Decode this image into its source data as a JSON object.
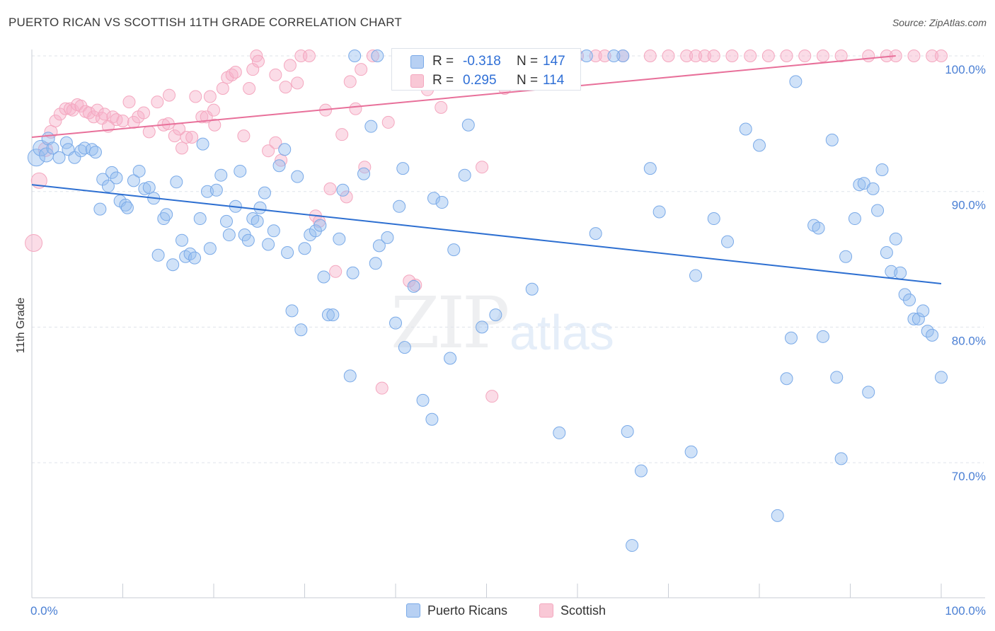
{
  "header": {
    "title": "PUERTO RICAN VS SCOTTISH 11TH GRADE CORRELATION CHART",
    "source": "Source: ZipAtlas.com"
  },
  "watermark": {
    "zip": "ZIP",
    "atlas": "atlas"
  },
  "stats_legend": {
    "rows": [
      {
        "r_label": "R =",
        "r_value": "-0.318",
        "n_label": "N =",
        "n_value": "147",
        "series": "Puerto Ricans"
      },
      {
        "r_label": "R =",
        "r_value": "0.295",
        "n_label": "N =",
        "n_value": "114",
        "series": "Scottish"
      }
    ]
  },
  "bottom_legend": {
    "items": [
      "Puerto Ricans",
      "Scottish"
    ]
  },
  "chart_data": {
    "type": "scatter",
    "title": "PUERTO RICAN VS SCOTTISH 11TH GRADE CORRELATION CHART",
    "xlabel": "",
    "ylabel": "11th Grade",
    "xlim": [
      0,
      100
    ],
    "ylim": [
      60,
      100
    ],
    "x_tick_labels": [
      "0.0%",
      "100.0%"
    ],
    "y_ticks": [
      {
        "value": 70,
        "label": "70.0%"
      },
      {
        "value": 80,
        "label": "80.0%"
      },
      {
        "value": 90,
        "label": "90.0%"
      },
      {
        "value": 100,
        "label": "100.0%"
      }
    ],
    "grid": true,
    "colors": {
      "Puerto Ricans": "#7aaae8",
      "Scottish": "#f4a7bf",
      "blue_line": "#2d6fd1",
      "pink_line": "#e8709a",
      "tick_label": "#4a7fd4"
    },
    "series": [
      {
        "name": "Puerto Ricans",
        "trend": [
          [
            0,
            90.5
          ],
          [
            100,
            83.2
          ]
        ],
        "points": [
          [
            0.5,
            92.5
          ],
          [
            1,
            93.2
          ],
          [
            1.6,
            92.7
          ],
          [
            1.8,
            93.9
          ],
          [
            2.3,
            93.2
          ],
          [
            3,
            92.5
          ],
          [
            3.8,
            93.6
          ],
          [
            4,
            93.1
          ],
          [
            4.7,
            92.5
          ],
          [
            5.4,
            93
          ],
          [
            5.8,
            93.2
          ],
          [
            6.6,
            93.1
          ],
          [
            7,
            92.9
          ],
          [
            7.5,
            88.7
          ],
          [
            7.8,
            90.9
          ],
          [
            8.4,
            90.4
          ],
          [
            8.8,
            91.4
          ],
          [
            9.3,
            91
          ],
          [
            9.7,
            89.3
          ],
          [
            10.3,
            89
          ],
          [
            10.5,
            88.8
          ],
          [
            11.2,
            90.8
          ],
          [
            11.8,
            91.5
          ],
          [
            12.4,
            90.2
          ],
          [
            12.9,
            90.3
          ],
          [
            13.4,
            89.5
          ],
          [
            13.9,
            85.3
          ],
          [
            14.5,
            88
          ],
          [
            14.8,
            88.3
          ],
          [
            15.5,
            84.6
          ],
          [
            15.9,
            90.7
          ],
          [
            16.5,
            86.4
          ],
          [
            16.9,
            85.2
          ],
          [
            17.4,
            85.4
          ],
          [
            17.9,
            85.1
          ],
          [
            18.5,
            88
          ],
          [
            18.8,
            93.5
          ],
          [
            19.3,
            90
          ],
          [
            19.6,
            85.8
          ],
          [
            20.3,
            90.1
          ],
          [
            20.8,
            91.2
          ],
          [
            21.4,
            87.8
          ],
          [
            21.7,
            86.8
          ],
          [
            22.4,
            88.9
          ],
          [
            22.9,
            91.5
          ],
          [
            23.4,
            86.8
          ],
          [
            23.8,
            86.4
          ],
          [
            24.3,
            88
          ],
          [
            24.8,
            87.8
          ],
          [
            25.1,
            88.8
          ],
          [
            25.6,
            89.9
          ],
          [
            26,
            86.1
          ],
          [
            26.6,
            87.1
          ],
          [
            27.2,
            91.9
          ],
          [
            27.8,
            93.1
          ],
          [
            28.1,
            85.5
          ],
          [
            28.6,
            81.2
          ],
          [
            29.2,
            91.1
          ],
          [
            29.6,
            79.8
          ],
          [
            30,
            85.8
          ],
          [
            30.6,
            86.8
          ],
          [
            31.2,
            87.1
          ],
          [
            31.7,
            87.5
          ],
          [
            32.1,
            83.7
          ],
          [
            32.6,
            80.9
          ],
          [
            33.1,
            80.9
          ],
          [
            33.8,
            86.5
          ],
          [
            34.2,
            90.1
          ],
          [
            35,
            76.4
          ],
          [
            35.3,
            84
          ],
          [
            36.5,
            91.3
          ],
          [
            37.3,
            94.8
          ],
          [
            37.8,
            84.7
          ],
          [
            38.2,
            86
          ],
          [
            39.1,
            86.6
          ],
          [
            40,
            80.3
          ],
          [
            40.4,
            88.9
          ],
          [
            40.8,
            91.7
          ],
          [
            41,
            78.5
          ],
          [
            42,
            83
          ],
          [
            43,
            74.6
          ],
          [
            44,
            73.2
          ],
          [
            44.2,
            89.5
          ],
          [
            45.1,
            89.2
          ],
          [
            46,
            77.7
          ],
          [
            46.4,
            85.7
          ],
          [
            46.8,
            99.1
          ],
          [
            47.6,
            91.2
          ],
          [
            48,
            94.9
          ],
          [
            49,
            100
          ],
          [
            49.5,
            80
          ],
          [
            51,
            80.9
          ],
          [
            55,
            82.8
          ],
          [
            58,
            72.2
          ],
          [
            61,
            100
          ],
          [
            62,
            86.9
          ],
          [
            65,
            100
          ],
          [
            65.5,
            72.3
          ],
          [
            66,
            63.9
          ],
          [
            67,
            69.4
          ],
          [
            68,
            91.7
          ],
          [
            69,
            88.5
          ],
          [
            72.5,
            70.8
          ],
          [
            73,
            83.8
          ],
          [
            75,
            88
          ],
          [
            76.5,
            86.3
          ],
          [
            78.5,
            94.6
          ],
          [
            80,
            93.4
          ],
          [
            82,
            66.1
          ],
          [
            83,
            76.2
          ],
          [
            83.5,
            79.2
          ],
          [
            84,
            98.1
          ],
          [
            86,
            87.5
          ],
          [
            86.5,
            87.3
          ],
          [
            87,
            79.3
          ],
          [
            88,
            93.8
          ],
          [
            88.5,
            76.3
          ],
          [
            89,
            70.3
          ],
          [
            89.5,
            85.2
          ],
          [
            90.5,
            88
          ],
          [
            91,
            90.5
          ],
          [
            91.5,
            90.6
          ],
          [
            92,
            75.2
          ],
          [
            92.5,
            90.2
          ],
          [
            93,
            88.6
          ],
          [
            93.5,
            91.6
          ],
          [
            94,
            85.5
          ],
          [
            94.5,
            84.1
          ],
          [
            95,
            86.5
          ],
          [
            95.5,
            84
          ],
          [
            96,
            82.4
          ],
          [
            96.5,
            82
          ],
          [
            97,
            80.6
          ],
          [
            97.5,
            80.6
          ],
          [
            98,
            81.2
          ],
          [
            98.5,
            79.7
          ],
          [
            99,
            79.4
          ],
          [
            100,
            76.3
          ],
          [
            35.5,
            100
          ],
          [
            38,
            100
          ],
          [
            40.5,
            100
          ],
          [
            43,
            100
          ],
          [
            55,
            100
          ],
          [
            64,
            100
          ],
          [
            58,
            100
          ]
        ]
      },
      {
        "name": "Scottish",
        "trend": [
          [
            0,
            94
          ],
          [
            95,
            100
          ]
        ],
        "points": [
          [
            0.2,
            86.2
          ],
          [
            0.8,
            90.8
          ],
          [
            1.5,
            93.1
          ],
          [
            2.1,
            94.4
          ],
          [
            2.6,
            95.2
          ],
          [
            3.1,
            95.7
          ],
          [
            3.7,
            96.1
          ],
          [
            4.2,
            96.1
          ],
          [
            4.5,
            96
          ],
          [
            5,
            96.4
          ],
          [
            5.4,
            96.3
          ],
          [
            5.9,
            95.9
          ],
          [
            6.3,
            95.8
          ],
          [
            6.8,
            95.5
          ],
          [
            7.2,
            96
          ],
          [
            7.7,
            95.4
          ],
          [
            8,
            95.7
          ],
          [
            8.4,
            94.8
          ],
          [
            8.9,
            95.5
          ],
          [
            9.3,
            95.3
          ],
          [
            10,
            95.2
          ],
          [
            10.7,
            96.6
          ],
          [
            11.2,
            95.1
          ],
          [
            11.7,
            95.5
          ],
          [
            12.3,
            95.8
          ],
          [
            12.9,
            94.4
          ],
          [
            13.8,
            96.6
          ],
          [
            14.5,
            94.9
          ],
          [
            15.1,
            97.1
          ],
          [
            15.7,
            94.1
          ],
          [
            16.2,
            94.6
          ],
          [
            16.5,
            93.2
          ],
          [
            17,
            94
          ],
          [
            17.6,
            94
          ],
          [
            18,
            97
          ],
          [
            18.7,
            95.5
          ],
          [
            19.2,
            95.5
          ],
          [
            19.6,
            97
          ],
          [
            20.1,
            94.9
          ],
          [
            21,
            97.6
          ],
          [
            21.5,
            98.4
          ],
          [
            22,
            98.6
          ],
          [
            22.4,
            98.8
          ],
          [
            23.3,
            94.1
          ],
          [
            23.9,
            97.6
          ],
          [
            24.3,
            99
          ],
          [
            24.7,
            100
          ],
          [
            24.9,
            99.6
          ],
          [
            26,
            93
          ],
          [
            26.8,
            98.6
          ],
          [
            27.4,
            92.3
          ],
          [
            27.9,
            97.7
          ],
          [
            28.4,
            99.3
          ],
          [
            29.2,
            98
          ],
          [
            29.6,
            100
          ],
          [
            30.5,
            100
          ],
          [
            31.2,
            88.2
          ],
          [
            31.6,
            87.8
          ],
          [
            32.3,
            96
          ],
          [
            32.8,
            90.2
          ],
          [
            33.4,
            84.1
          ],
          [
            34.1,
            94.2
          ],
          [
            34.6,
            89.6
          ],
          [
            35,
            98.1
          ],
          [
            35.6,
            96.1
          ],
          [
            36.6,
            91.8
          ],
          [
            37.5,
            100
          ],
          [
            38.5,
            75.5
          ],
          [
            39.2,
            95.1
          ],
          [
            40.5,
            100
          ],
          [
            41.5,
            83.4
          ],
          [
            42.2,
            83.1
          ],
          [
            43,
            100
          ],
          [
            43.5,
            97.5
          ],
          [
            45,
            96.2
          ],
          [
            45.5,
            100
          ],
          [
            47,
            100
          ],
          [
            49.5,
            91.8
          ],
          [
            50,
            100
          ],
          [
            50.6,
            74.9
          ],
          [
            51,
            100
          ],
          [
            52,
            97.6
          ],
          [
            53,
            100
          ],
          [
            54,
            100
          ],
          [
            55,
            100
          ],
          [
            56,
            100
          ],
          [
            57,
            100
          ],
          [
            58,
            100
          ],
          [
            60,
            100
          ],
          [
            62,
            100
          ],
          [
            63,
            100
          ],
          [
            65,
            100
          ],
          [
            68,
            100
          ],
          [
            70,
            100
          ],
          [
            72,
            100
          ],
          [
            73,
            100
          ],
          [
            74,
            100
          ],
          [
            75,
            100
          ],
          [
            77,
            100
          ],
          [
            79,
            100
          ],
          [
            81,
            100
          ],
          [
            83,
            100
          ],
          [
            85,
            100
          ],
          [
            87,
            100
          ],
          [
            89,
            100
          ],
          [
            92,
            100
          ],
          [
            94,
            100
          ],
          [
            95,
            100
          ],
          [
            97,
            100
          ],
          [
            99,
            100
          ],
          [
            100,
            100
          ],
          [
            15,
            95
          ],
          [
            20,
            96
          ],
          [
            26.8,
            93.6
          ],
          [
            36.2,
            99
          ],
          [
            47.4,
            100
          ]
        ]
      }
    ]
  }
}
